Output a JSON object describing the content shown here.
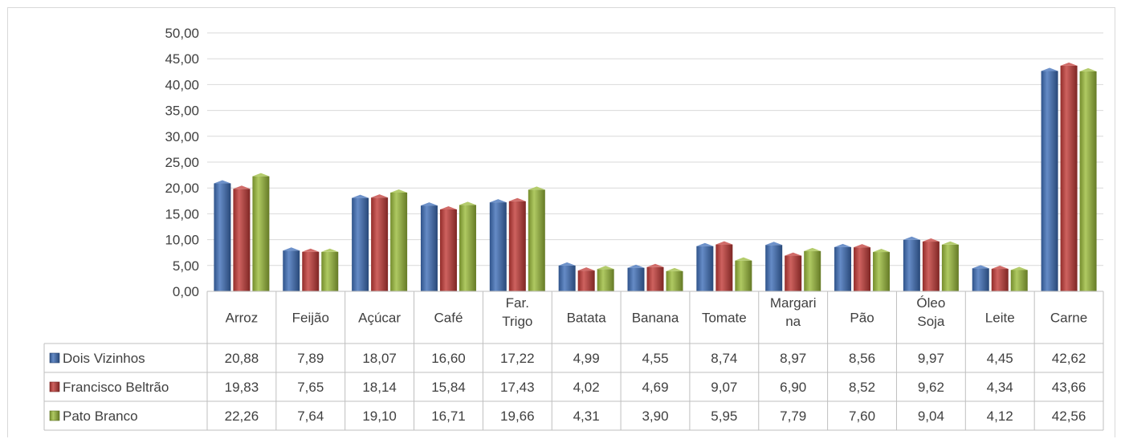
{
  "chart_data": {
    "type": "bar",
    "title": "",
    "xlabel": "",
    "ylabel": "",
    "ylim": [
      0,
      50
    ],
    "y_ticks": [
      "0,00",
      "5,00",
      "10,00",
      "15,00",
      "20,00",
      "25,00",
      "30,00",
      "35,00",
      "40,00",
      "45,00",
      "50,00"
    ],
    "grid": true,
    "legend": "data-table-left",
    "categories": [
      [
        "Arroz"
      ],
      [
        "Feijão"
      ],
      [
        "Açúcar"
      ],
      [
        "Café"
      ],
      [
        "Far.",
        "Trigo"
      ],
      [
        "Batata"
      ],
      [
        "Banana"
      ],
      [
        "Tomate"
      ],
      [
        "Margari",
        "na"
      ],
      [
        "Pão"
      ],
      [
        "Óleo",
        "Soja"
      ],
      [
        "Leite"
      ],
      [
        "Carne"
      ]
    ],
    "series": [
      {
        "name": "Dois Vizinhos",
        "color": "#3e6eb8",
        "values": [
          20.88,
          7.89,
          18.07,
          16.6,
          17.22,
          4.99,
          4.55,
          8.74,
          8.97,
          8.56,
          9.97,
          4.45,
          42.62
        ],
        "labels": [
          "20,88",
          "7,89",
          "18,07",
          "16,60",
          "17,22",
          "4,99",
          "4,55",
          "8,74",
          "8,97",
          "8,56",
          "9,97",
          "4,45",
          "42,62"
        ]
      },
      {
        "name": "Francisco Beltrão",
        "color": "#c23b37",
        "values": [
          19.83,
          7.65,
          18.14,
          15.84,
          17.43,
          4.02,
          4.69,
          9.07,
          6.9,
          8.52,
          9.62,
          4.34,
          43.66
        ],
        "labels": [
          "19,83",
          "7,65",
          "18,14",
          "15,84",
          "17,43",
          "4,02",
          "4,69",
          "9,07",
          "6,90",
          "8,52",
          "9,62",
          "4,34",
          "43,66"
        ]
      },
      {
        "name": "Pato Branco",
        "color": "#9bbb3b",
        "values": [
          22.26,
          7.64,
          19.1,
          16.71,
          19.66,
          4.31,
          3.9,
          5.95,
          7.79,
          7.6,
          9.04,
          4.12,
          42.56
        ],
        "labels": [
          "22,26",
          "7,64",
          "19,10",
          "16,71",
          "19,66",
          "4,31",
          "3,90",
          "5,95",
          "7,79",
          "7,60",
          "9,04",
          "4,12",
          "42,56"
        ]
      }
    ]
  }
}
